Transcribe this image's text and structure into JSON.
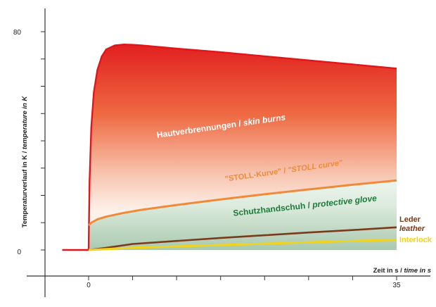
{
  "chart_data": {
    "type": "area",
    "xlabel_de": "Zeit in s",
    "xlabel_en": "time in s",
    "ylabel_de": "Temperaturverlauf in K",
    "ylabel_en": "temperature in K",
    "x_ticks": [
      "0",
      "35"
    ],
    "y_ticks": [
      "0",
      "80"
    ],
    "xlim": [
      -5,
      38
    ],
    "ylim": [
      0,
      85
    ],
    "series": [
      {
        "name": "Hautverbrennungen / skin burns",
        "label_de": "Hautverbrennungen",
        "label_en": "skin burns",
        "color": "#e0161b",
        "x": [
          -3,
          0,
          0.1,
          0.3,
          0.6,
          1,
          1.5,
          2,
          3,
          4,
          5,
          6,
          8,
          10,
          15,
          20,
          25,
          30,
          35
        ],
        "y": [
          0,
          0,
          25,
          45,
          58,
          66,
          71,
          73.5,
          75,
          75.3,
          75.2,
          75,
          74.4,
          73.8,
          72.5,
          71,
          69.5,
          68,
          66.5
        ]
      },
      {
        "name": "\"STOLL-Kurve\" / \"STOLL curve\"",
        "label_de": "\"STOLL-Kurve\"",
        "label_en": "\"STOLL curve\"",
        "color": "#ef8a3a",
        "x": [
          0,
          0.3,
          1,
          2,
          4,
          6,
          10,
          15,
          20,
          25,
          30,
          35
        ],
        "y": [
          9,
          10,
          11.2,
          12.2,
          13.6,
          14.7,
          16.5,
          18.5,
          20.4,
          22.2,
          23.9,
          25.5
        ]
      },
      {
        "name": "Leder / leather",
        "label_de": "Leder",
        "label_en": "leather",
        "color": "#7b3a1c",
        "x": [
          0,
          2,
          5,
          10,
          15,
          20,
          25,
          30,
          35
        ],
        "y": [
          0,
          0.8,
          2.2,
          3.3,
          4.4,
          5.4,
          6.4,
          7.3,
          8.3
        ]
      },
      {
        "name": "Interlock",
        "label_de": "Interlock",
        "color": "#f2d31b",
        "x": [
          0,
          2,
          5,
          10,
          15,
          20,
          25,
          30,
          35
        ],
        "y": [
          0,
          0.3,
          0.8,
          1.3,
          1.8,
          2.3,
          2.8,
          3.3,
          3.7
        ]
      }
    ],
    "region_label": {
      "label_de": "Schutzhandschuh",
      "label_en": "protective glove",
      "color": "#1e7a3c"
    },
    "grid": false,
    "legend": "inline"
  }
}
